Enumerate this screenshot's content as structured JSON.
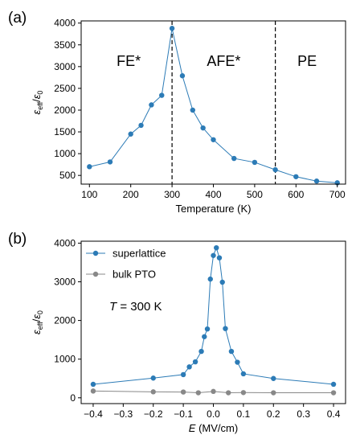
{
  "chart_data": [
    {
      "type": "line",
      "panel_label": "(a)",
      "xlabel": "Temperature (K)",
      "ylabel": "ε_eff/ε_0",
      "ylabel_main": "ε",
      "ylabel_sub1": "eff",
      "ylabel_slash": "/",
      "ylabel_sub2": "0",
      "xlim": [
        80,
        720
      ],
      "ylim": [
        300,
        4050
      ],
      "xticks": [
        100,
        200,
        300,
        400,
        500,
        600,
        700
      ],
      "yticks": [
        500,
        1000,
        1500,
        2000,
        2500,
        3000,
        3500,
        4000
      ],
      "grid": false,
      "series": [
        {
          "color": "#2c7bb6",
          "x": [
            100,
            150,
            200,
            225,
            250,
            275,
            300,
            325,
            350,
            375,
            400,
            450,
            500,
            550,
            600,
            650,
            700
          ],
          "y": [
            700,
            810,
            1450,
            1650,
            2120,
            2340,
            3880,
            2790,
            2000,
            1590,
            1320,
            890,
            800,
            630,
            470,
            370,
            330
          ]
        }
      ],
      "vlines": [
        300,
        550
      ],
      "regions": [
        {
          "label": "FE*",
          "x": 195
        },
        {
          "label": "AFE*",
          "x": 425
        },
        {
          "label": "PE",
          "x": 627
        }
      ]
    },
    {
      "type": "line",
      "panel_label": "(b)",
      "xlabel_var": "E",
      "xlabel_unit": " (MV/cm)",
      "ylabel_main": "ε",
      "ylabel_sub1": "eff",
      "ylabel_slash": "/",
      "ylabel_sub2": "0",
      "xlim": [
        -0.44,
        0.44
      ],
      "ylim": [
        -150,
        4050
      ],
      "xticks": [
        -0.4,
        -0.3,
        -0.2,
        -0.1,
        0.0,
        0.1,
        0.2,
        0.3,
        0.4
      ],
      "xtick_labels": [
        "−0.4",
        "−0.3",
        "−0.2",
        "−0.1",
        "0.0",
        "0.1",
        "0.2",
        "0.3",
        "0.4"
      ],
      "yticks": [
        0,
        1000,
        2000,
        3000,
        4000
      ],
      "grid": false,
      "legend_placement": "top-left",
      "annotation_var": "T",
      "annotation_rest": " = 300 K",
      "series": [
        {
          "name": "superlattice",
          "color": "#2c7bb6",
          "x": [
            -0.4,
            -0.2,
            -0.1,
            -0.08,
            -0.06,
            -0.04,
            -0.03,
            -0.02,
            -0.01,
            0.0,
            0.01,
            0.02,
            0.03,
            0.04,
            0.06,
            0.08,
            0.1,
            0.2,
            0.4
          ],
          "y": [
            350,
            510,
            600,
            800,
            930,
            1200,
            1580,
            1780,
            3070,
            3680,
            3880,
            3620,
            2990,
            1790,
            1200,
            920,
            620,
            500,
            350
          ]
        },
        {
          "name": "bulk PTO",
          "color": "#888888",
          "x": [
            -0.4,
            -0.2,
            -0.1,
            -0.05,
            0.0,
            0.05,
            0.1,
            0.2,
            0.4
          ],
          "y": [
            175,
            155,
            150,
            130,
            165,
            130,
            135,
            130,
            130
          ]
        }
      ]
    }
  ]
}
